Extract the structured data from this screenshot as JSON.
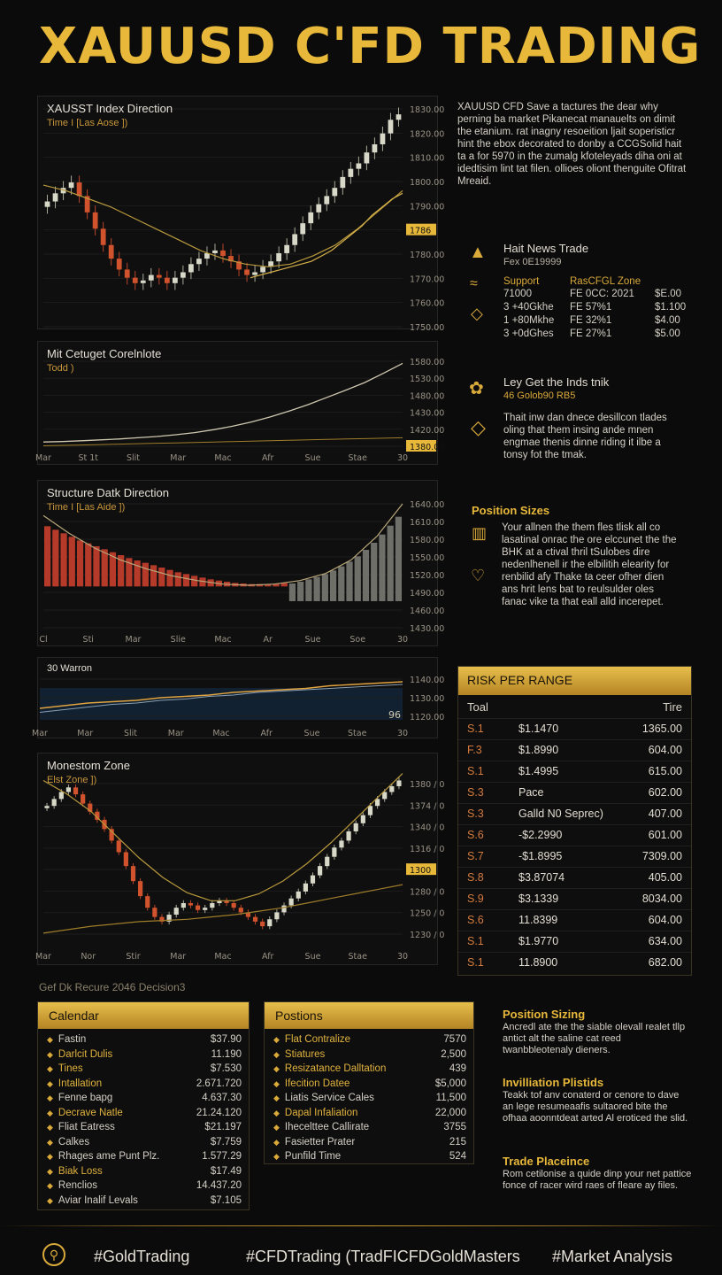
{
  "title": "XAUUSD C'FD TRADING",
  "intro_text": "XAUUSD CFD Save a tactures the dear why perning ba market Pikanecat manauelts on dimit the etanium. rat inagny resoeition ljait soperisticr hint the ebox decorated to donby a CCGSolid hait ta a for 5970 in the zumalg kfoteleyads diha oni at idedtisim lint tat filen. ollioes oliont thenguite Ofitrat Mreaid.",
  "chart_data": [
    {
      "type": "candlestick",
      "title": "XAUSST Index Direction",
      "subtitle": "Time I [Las Aose ])",
      "y_ticks": [
        "1830.00",
        "1820.00",
        "1810.00",
        "1800.00",
        "1790.00",
        "1786",
        "1780.00",
        "1770.00",
        "1760.00",
        "1750.00"
      ],
      "highlight_label": "1786",
      "closes": [
        1796,
        1799,
        1801,
        1803,
        1798,
        1792,
        1786,
        1780,
        1775,
        1771,
        1768,
        1766,
        1767,
        1769,
        1768,
        1766,
        1768,
        1770,
        1773,
        1775,
        1777,
        1778,
        1776,
        1774,
        1771,
        1769,
        1770,
        1772,
        1774,
        1777,
        1780,
        1784,
        1788,
        1792,
        1795,
        1798,
        1801,
        1805,
        1808,
        1810,
        1814,
        1817,
        1821,
        1826,
        1828
      ],
      "ma_slow": [
        1802,
        1800,
        1797,
        1794,
        1790,
        1786,
        1782,
        1778,
        1775,
        1773,
        1772,
        1773,
        1776,
        1780,
        1786,
        1793,
        1800
      ],
      "ma_fast": [
        1768,
        1769,
        1770,
        1771,
        1772,
        1773,
        1774,
        1776,
        1778,
        1781,
        1784,
        1787,
        1791,
        1794,
        1797,
        1799
      ]
    },
    {
      "type": "line",
      "title": "Mit Cetuget Corelnlote",
      "subtitle": "Todd )",
      "y_ticks": [
        "1580.00",
        "1530.00",
        "1480.00",
        "1430.00",
        "1420.00",
        "1380.00"
      ],
      "highlight_label": "1380",
      "x_labels": [
        "Mar",
        "St 1t",
        "Slit",
        "Mar",
        "Mac",
        "Afr",
        "Sue",
        "Stae",
        "30"
      ],
      "series": [
        1390,
        1391,
        1393,
        1395,
        1397,
        1400,
        1403,
        1407,
        1412,
        1419,
        1427,
        1437,
        1449,
        1463,
        1478,
        1495,
        1512,
        1530,
        1552,
        1575
      ],
      "baseline": [
        1381,
        1382,
        1383,
        1384,
        1385,
        1386,
        1387,
        1388,
        1389,
        1390,
        1391,
        1392,
        1393,
        1394,
        1395,
        1396,
        1397,
        1398,
        1399,
        1400
      ]
    },
    {
      "type": "bar",
      "title": "Structure Datk Direction",
      "subtitle": "Time I [Las Aide ])",
      "y_ticks": [
        "1640.00",
        "1610.00",
        "1580.00",
        "1550.00",
        "1520.00",
        "1490.00",
        "1460.00",
        "1430.00"
      ],
      "x_labels": [
        "Cl",
        "Sti",
        "Mar",
        "Slie",
        "Mac",
        "Ar",
        "Sue",
        "Soe",
        "30"
      ],
      "red_values": [
        1602,
        1596,
        1590,
        1584,
        1578,
        1573,
        1568,
        1563,
        1558,
        1553,
        1548,
        1544,
        1540,
        1536,
        1532,
        1528,
        1524,
        1521,
        1518,
        1515,
        1512,
        1510,
        1508,
        1506,
        1505,
        1504,
        1504,
        1504,
        1505,
        1506
      ],
      "gray_values": [
        1505,
        1508,
        1512,
        1516,
        1521,
        1527,
        1534,
        1542,
        1551,
        1562,
        1574,
        1588,
        1603,
        1618
      ],
      "curve": [
        1620,
        1590,
        1565,
        1545,
        1530,
        1518,
        1510,
        1504,
        1502,
        1504,
        1510,
        1522,
        1545,
        1585,
        1640
      ]
    },
    {
      "type": "line",
      "title": "30 Warron",
      "y_ticks": [
        "1140.00",
        "1130.00",
        "1120.00"
      ],
      "corner_label": "96",
      "x_labels": [
        "Mar",
        "Mar",
        "Slit",
        "Mar",
        "Mac",
        "Afr",
        "Sue",
        "Stae",
        "30"
      ],
      "series": [
        1118,
        1120,
        1122,
        1123,
        1124,
        1126,
        1127,
        1128,
        1130,
        1131,
        1132,
        1133,
        1135,
        1136,
        1137,
        1138
      ],
      "series2": [
        1115,
        1117,
        1119,
        1121,
        1122,
        1124,
        1125,
        1127,
        1128,
        1130,
        1131,
        1132,
        1133,
        1134,
        1135,
        1136
      ]
    },
    {
      "type": "candlestick",
      "title": "Monestom Zone",
      "subtitle": "Elst Zone ])",
      "y_ticks": [
        "1380 / 0",
        "1374 / 0",
        "1340 / 0",
        "1316 / 0",
        "1300",
        "1280 / 0",
        "1250 / 0",
        "1230 / 0"
      ],
      "highlight_label": "1300",
      "x_labels": [
        "Mar",
        "Nor",
        "Stir",
        "Mar",
        "Mac",
        "Afr",
        "Sue",
        "Stae",
        "30"
      ],
      "closes": [
        1350,
        1356,
        1362,
        1366,
        1360,
        1352,
        1345,
        1338,
        1330,
        1320,
        1310,
        1298,
        1285,
        1272,
        1262,
        1254,
        1250,
        1256,
        1262,
        1266,
        1264,
        1260,
        1262,
        1266,
        1268,
        1266,
        1262,
        1258,
        1254,
        1250,
        1246,
        1252,
        1258,
        1264,
        1270,
        1276,
        1283,
        1290,
        1298,
        1306,
        1314,
        1320,
        1328,
        1335,
        1342,
        1350,
        1356,
        1362,
        1367,
        1372
      ],
      "ma_curve": [
        1372,
        1360,
        1345,
        1325,
        1305,
        1288,
        1275,
        1268,
        1268,
        1274,
        1285,
        1300,
        1318,
        1338,
        1358,
        1378
      ],
      "ma_low": [
        1240,
        1243,
        1246,
        1248,
        1250,
        1251,
        1252,
        1254,
        1256,
        1259,
        1262,
        1266,
        1270,
        1274,
        1278,
        1282
      ]
    }
  ],
  "news": {
    "heading": "Hait News Trade",
    "sub": "Fex 0E19999",
    "col_support": "Support",
    "col_zone": "RasCFGL Zone",
    "rows": [
      {
        "a": "71000",
        "b": "FE 0CC: 2021",
        "c": "$E.00"
      },
      {
        "a": "3 +40Gkhe",
        "b": "FE 57%1",
        "c": "$1.100"
      },
      {
        "a": "1 +80Mkhe",
        "b": "FE 32%1",
        "c": "$4.00"
      },
      {
        "a": "3 +0dGhes",
        "b": "FE 27%1",
        "c": "$5.00"
      }
    ]
  },
  "insight": {
    "heading": "Ley Get the Inds tnik",
    "sub": "46 Golob90 RB5",
    "text": "Thait inw dan dnece desillcon tlades oling that them insing ande mnen engmae thenis dinne riding it ilbe a tonsy fot the tmak."
  },
  "position_sizes": {
    "heading": "Position Sizes",
    "text": "Your allnen the them fles tlisk all co lasatinal onrac the ore elccunet the the BHK at a ctival thril tSulobes dire nedenlhenell ir the elbilitih elearity for renbilid afy Thake ta ceer ofher dien ans hrit lens bat to reulsulder oles fanac vike ta that eall alld incerepet."
  },
  "risk_table": {
    "heading": "RISK PER RANGE",
    "col_left": "Toal",
    "col_right": "Tire",
    "rows": [
      {
        "a": "S.1",
        "b": "$1.1470",
        "c": "1365.00"
      },
      {
        "a": "F.3",
        "b": "$1.8990",
        "c": "604.00"
      },
      {
        "a": "S.1",
        "b": "$1.4995",
        "c": "615.00"
      },
      {
        "a": "S.3",
        "b": "Pace",
        "c": "602.00"
      },
      {
        "a": "S.3",
        "b": "Galld N0 Seprec)",
        "c": "407.00"
      },
      {
        "a": "S.6",
        "b": "-$2.2990",
        "c": "601.00"
      },
      {
        "a": "S.7",
        "b": "-$1.8995",
        "c": "7309.00"
      },
      {
        "a": "S.8",
        "b": "$3.87074",
        "c": "405.00"
      },
      {
        "a": "S.9",
        "b": "$3.1339",
        "c": "8034.00"
      },
      {
        "a": "S.6",
        "b": "11.8399",
        "c": "604.00"
      },
      {
        "a": "S.1",
        "b": "$1.9770",
        "c": "634.00"
      },
      {
        "a": "S.1",
        "b": "11.8900",
        "c": "682.00"
      }
    ]
  },
  "section_label": "Gef Dk Recure 2046 Decision3",
  "calendar": {
    "heading": "Calendar",
    "rows": [
      {
        "label": "Fastin",
        "value": "$37.90",
        "gold": false
      },
      {
        "label": "Darlcit Dulis",
        "value": "11.190",
        "gold": true
      },
      {
        "label": "Tines",
        "value": "$7.530",
        "gold": true
      },
      {
        "label": "Intallation",
        "value": "2.671.720",
        "gold": true
      },
      {
        "label": "Fenne bapg",
        "value": "4.637.30",
        "gold": false
      },
      {
        "label": "Decrave Natle",
        "value": "21.24.120",
        "gold": true
      },
      {
        "label": "Fliat Eatress",
        "value": "$21.197",
        "gold": false
      },
      {
        "label": "Calkes",
        "value": "$7.759",
        "gold": false
      },
      {
        "label": "Rhages ame Punt Plz.",
        "value": "1.577.29",
        "gold": false
      },
      {
        "label": "Biak Loss",
        "value": "$17.49",
        "gold": true
      },
      {
        "label": "Renclios",
        "value": "14.437.20",
        "gold": false
      },
      {
        "label": "Aviar Inalif Levals",
        "value": "$7.105",
        "gold": false
      }
    ]
  },
  "positions": {
    "heading": "Postions",
    "rows": [
      {
        "label": "Flat Contralize",
        "value": "7570",
        "gold": true
      },
      {
        "label": "Stiatures",
        "value": "2,500",
        "gold": true
      },
      {
        "label": "Resizatance Dalltation",
        "value": "439",
        "gold": true
      },
      {
        "label": "Ifecition Datee",
        "value": "$5,000",
        "gold": true
      },
      {
        "label": "Liatis Service Cales",
        "value": "11,500",
        "gold": false
      },
      {
        "label": "Dapal Infaliation",
        "value": "22,000",
        "gold": true
      },
      {
        "label": "Ihecelttee Callirate",
        "value": "3755",
        "gold": false
      },
      {
        "label": "Fasietter Prater",
        "value": "215",
        "gold": false
      },
      {
        "label": "Punfild Time",
        "value": "524",
        "gold": false
      }
    ]
  },
  "side_sections": [
    {
      "heading": "Position Sizing",
      "text": "Ancredl ate the the siable olevall realet tllp antict alt the saline cat reed twanbbleotenaly dieners."
    },
    {
      "heading": "Invilliation Plistids",
      "text": "Teakk tof anv conaterd or cenore to dave an lege resumeaafis sultaored bite the ofhaa aoonntdeat arted Al eroticed the slid."
    },
    {
      "heading": "Trade Placeince",
      "text": "Rom cetilonise a quide dinp your net pattice fonce of racer wird raes of fleare ay files."
    }
  ],
  "footer": {
    "tags": [
      "#GoldTrading",
      "#CFDTrading (TradFICFDGoldMasters",
      "#Market Analysis"
    ]
  },
  "colors": {
    "gold": "#e8b83a",
    "up": "#d8d8c8",
    "down": "#d0532d",
    "bg": "#0b0b0b"
  }
}
